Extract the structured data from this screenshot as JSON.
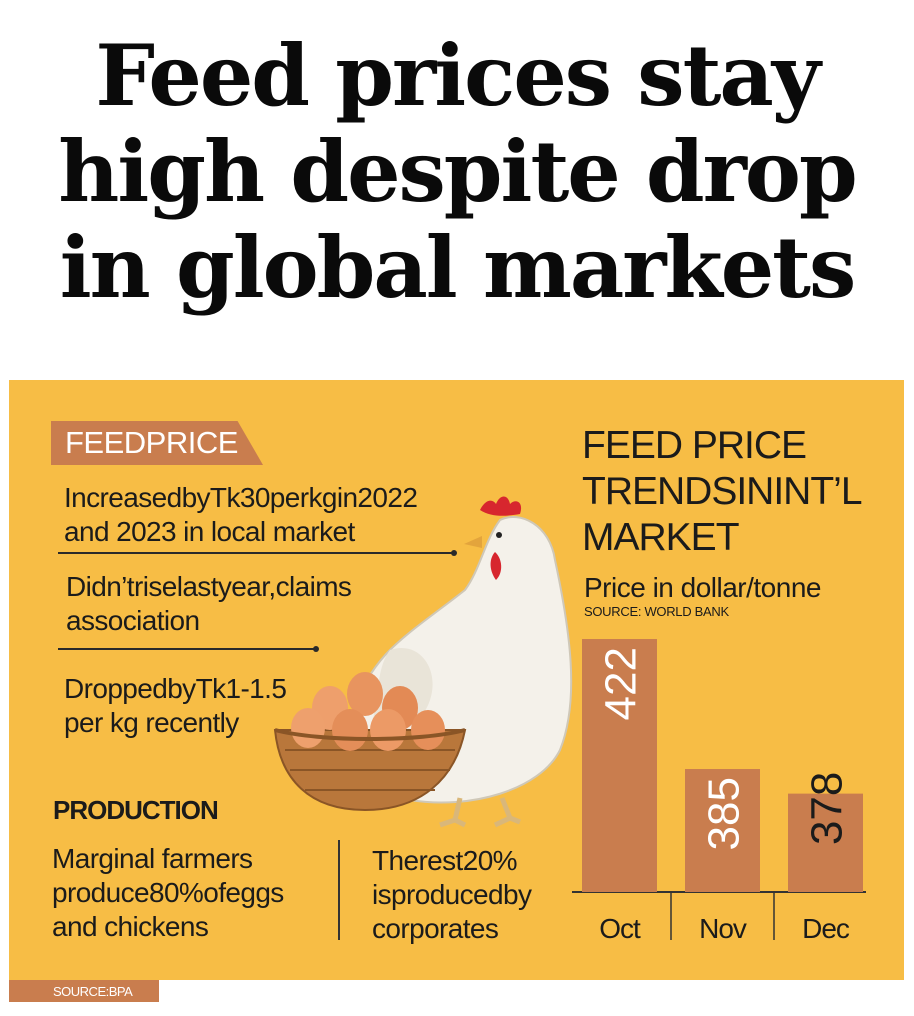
{
  "headline": {
    "line1": "Feed prices stay",
    "line2": "high despite drop",
    "line3": "in global markets"
  },
  "feed_price": {
    "tag": "FEEDPRICE",
    "bullets": [
      {
        "line1": "IncreasedbyTk30perkgin2022",
        "line2": "and 2023 in local market"
      },
      {
        "line1": "Didn’triselastyear,claims",
        "line2": "association"
      },
      {
        "line1": "DroppedbyTk1-1.5",
        "line2": "per kg recently"
      }
    ]
  },
  "production": {
    "heading": "PRODUCTION",
    "left": {
      "line1": "Marginal farmers",
      "line2": "produce80%ofeggs",
      "line3": "and chickens"
    },
    "right": {
      "line1": "Therest20%",
      "line2": "isproducedby",
      "line3": "corporates"
    }
  },
  "chart_header": {
    "title_line1": "FEED PRICE",
    "title_line2": "TRENDSININT’L",
    "title_line3": "MARKET",
    "subtitle": "Price in dollar/tonne",
    "source": "SOURCE: WORLD BANK"
  },
  "chart_data": {
    "type": "bar",
    "title": "FEED PRICE TRENDSININT’L MARKET",
    "ylabel": "Price in dollar/tonne",
    "categories": [
      "Oct",
      "Nov",
      "Dec"
    ],
    "values": [
      422,
      385,
      378
    ],
    "ylim": [
      350,
      424
    ]
  },
  "footer": {
    "source": "SOURCE:BPA"
  },
  "colors": {
    "panel": "#f7bd45",
    "accent": "#c97d4e",
    "text": "#1b1b1b"
  }
}
